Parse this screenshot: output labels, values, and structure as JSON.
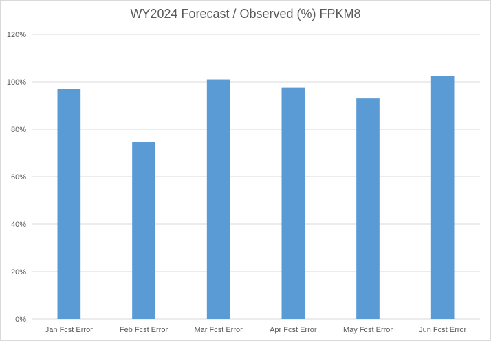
{
  "chart_data": {
    "type": "bar",
    "title": "WY2024 Forecast / Observed (%) FPKM8",
    "categories": [
      "Jan Fcst Error",
      "Feb Fcst Error",
      "Mar Fcst Error",
      "Apr Fcst Error",
      "May Fcst Error",
      "Jun Fcst Error"
    ],
    "values": [
      97,
      74.5,
      101,
      97.5,
      93,
      102.5
    ],
    "ylim": [
      0,
      120
    ],
    "yticks": [
      0,
      20,
      40,
      60,
      80,
      100,
      120
    ],
    "ytick_labels": [
      "0%",
      "20%",
      "40%",
      "60%",
      "80%",
      "100%",
      "120%"
    ],
    "grid": true,
    "bar_color": "#5b9bd5"
  }
}
